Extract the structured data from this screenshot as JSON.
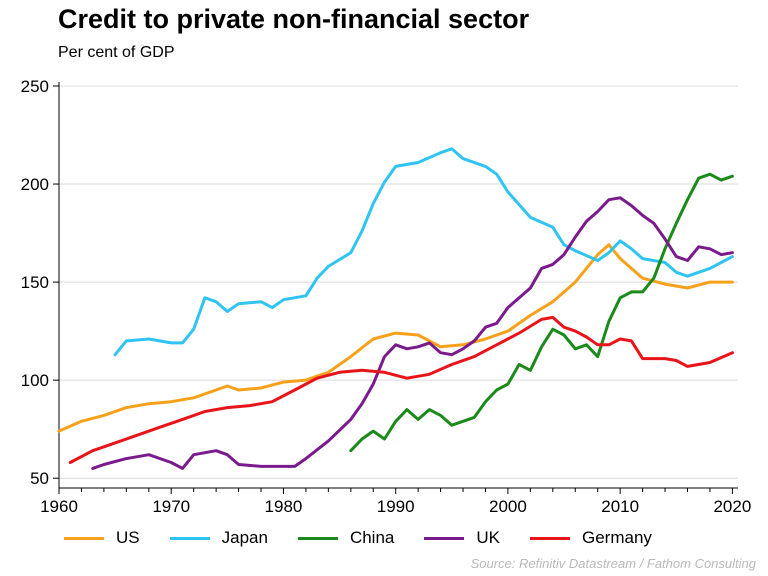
{
  "title": "Credit to private non-financial sector",
  "subtitle": "Per cent of GDP",
  "source": "Source: Refinitiv Datastream / Fathom Consulting",
  "chart_data": {
    "type": "line",
    "title": "Credit to private non-financial sector",
    "subtitle": "Per cent of GDP",
    "xlabel": "",
    "ylabel": "",
    "xlim": [
      1960,
      2020.5
    ],
    "ylim": [
      45,
      250
    ],
    "yticks": [
      50,
      100,
      150,
      200,
      250
    ],
    "xticks": [
      1960,
      1970,
      1980,
      1990,
      2000,
      2010,
      2020
    ],
    "grid": "horizontal",
    "legend": "bottom",
    "series": [
      {
        "name": "US",
        "color": "#f7a11a",
        "points": [
          [
            1960,
            74
          ],
          [
            1962,
            79
          ],
          [
            1964,
            82
          ],
          [
            1966,
            86
          ],
          [
            1968,
            88
          ],
          [
            1970,
            89
          ],
          [
            1972,
            91
          ],
          [
            1974,
            95
          ],
          [
            1975,
            97
          ],
          [
            1976,
            95
          ],
          [
            1978,
            96
          ],
          [
            1980,
            99
          ],
          [
            1982,
            100
          ],
          [
            1984,
            104
          ],
          [
            1986,
            112
          ],
          [
            1988,
            121
          ],
          [
            1990,
            124
          ],
          [
            1992,
            123
          ],
          [
            1994,
            117
          ],
          [
            1996,
            118
          ],
          [
            1998,
            121
          ],
          [
            2000,
            125
          ],
          [
            2002,
            133
          ],
          [
            2004,
            140
          ],
          [
            2006,
            150
          ],
          [
            2008,
            164
          ],
          [
            2009,
            169
          ],
          [
            2010,
            162
          ],
          [
            2012,
            152
          ],
          [
            2014,
            149
          ],
          [
            2016,
            147
          ],
          [
            2018,
            150
          ],
          [
            2020,
            150
          ]
        ]
      },
      {
        "name": "Japan",
        "color": "#2fc4f2",
        "points": [
          [
            1965,
            113
          ],
          [
            1966,
            120
          ],
          [
            1968,
            121
          ],
          [
            1970,
            119
          ],
          [
            1971,
            119
          ],
          [
            1972,
            126
          ],
          [
            1973,
            142
          ],
          [
            1974,
            140
          ],
          [
            1975,
            135
          ],
          [
            1976,
            139
          ],
          [
            1978,
            140
          ],
          [
            1979,
            137
          ],
          [
            1980,
            141
          ],
          [
            1982,
            143
          ],
          [
            1983,
            152
          ],
          [
            1984,
            158
          ],
          [
            1986,
            165
          ],
          [
            1987,
            176
          ],
          [
            1988,
            190
          ],
          [
            1989,
            201
          ],
          [
            1990,
            209
          ],
          [
            1992,
            211
          ],
          [
            1994,
            216
          ],
          [
            1995,
            218
          ],
          [
            1996,
            213
          ],
          [
            1998,
            209
          ],
          [
            1999,
            205
          ],
          [
            2000,
            196
          ],
          [
            2002,
            183
          ],
          [
            2004,
            178
          ],
          [
            2005,
            169
          ],
          [
            2006,
            166
          ],
          [
            2008,
            161
          ],
          [
            2009,
            165
          ],
          [
            2010,
            171
          ],
          [
            2011,
            167
          ],
          [
            2012,
            162
          ],
          [
            2014,
            160
          ],
          [
            2015,
            155
          ],
          [
            2016,
            153
          ],
          [
            2018,
            157
          ],
          [
            2019,
            160
          ],
          [
            2020,
            163
          ]
        ]
      },
      {
        "name": "China",
        "color": "#1a8a1a",
        "points": [
          [
            1986,
            64
          ],
          [
            1987,
            70
          ],
          [
            1988,
            74
          ],
          [
            1989,
            70
          ],
          [
            1990,
            79
          ],
          [
            1991,
            85
          ],
          [
            1992,
            80
          ],
          [
            1993,
            85
          ],
          [
            1994,
            82
          ],
          [
            1995,
            77
          ],
          [
            1996,
            79
          ],
          [
            1997,
            81
          ],
          [
            1998,
            89
          ],
          [
            1999,
            95
          ],
          [
            2000,
            98
          ],
          [
            2001,
            108
          ],
          [
            2002,
            105
          ],
          [
            2003,
            117
          ],
          [
            2004,
            126
          ],
          [
            2005,
            123
          ],
          [
            2006,
            116
          ],
          [
            2007,
            118
          ],
          [
            2008,
            112
          ],
          [
            2009,
            130
          ],
          [
            2010,
            142
          ],
          [
            2011,
            145
          ],
          [
            2012,
            145
          ],
          [
            2013,
            152
          ],
          [
            2014,
            167
          ],
          [
            2015,
            180
          ],
          [
            2016,
            192
          ],
          [
            2017,
            203
          ],
          [
            2018,
            205
          ],
          [
            2019,
            202
          ],
          [
            2020,
            204
          ]
        ]
      },
      {
        "name": "UK",
        "color": "#7b1a8c",
        "points": [
          [
            1963,
            55
          ],
          [
            1964,
            57
          ],
          [
            1966,
            60
          ],
          [
            1968,
            62
          ],
          [
            1970,
            58
          ],
          [
            1971,
            55
          ],
          [
            1972,
            62
          ],
          [
            1974,
            64
          ],
          [
            1975,
            62
          ],
          [
            1976,
            57
          ],
          [
            1978,
            56
          ],
          [
            1980,
            56
          ],
          [
            1981,
            56
          ],
          [
            1982,
            60
          ],
          [
            1984,
            69
          ],
          [
            1986,
            80
          ],
          [
            1987,
            88
          ],
          [
            1988,
            98
          ],
          [
            1989,
            112
          ],
          [
            1990,
            118
          ],
          [
            1991,
            116
          ],
          [
            1992,
            117
          ],
          [
            1993,
            119
          ],
          [
            1994,
            114
          ],
          [
            1995,
            113
          ],
          [
            1996,
            116
          ],
          [
            1997,
            120
          ],
          [
            1998,
            127
          ],
          [
            1999,
            129
          ],
          [
            2000,
            137
          ],
          [
            2002,
            147
          ],
          [
            2003,
            157
          ],
          [
            2004,
            159
          ],
          [
            2005,
            164
          ],
          [
            2006,
            173
          ],
          [
            2007,
            181
          ],
          [
            2008,
            186
          ],
          [
            2009,
            192
          ],
          [
            2010,
            193
          ],
          [
            2011,
            189
          ],
          [
            2012,
            184
          ],
          [
            2013,
            180
          ],
          [
            2014,
            172
          ],
          [
            2015,
            163
          ],
          [
            2016,
            161
          ],
          [
            2017,
            168
          ],
          [
            2018,
            167
          ],
          [
            2019,
            164
          ],
          [
            2020,
            165
          ]
        ]
      },
      {
        "name": "Germany",
        "color": "#e8141a",
        "points": [
          [
            1961,
            58
          ],
          [
            1963,
            64
          ],
          [
            1965,
            68
          ],
          [
            1967,
            72
          ],
          [
            1969,
            76
          ],
          [
            1971,
            80
          ],
          [
            1973,
            84
          ],
          [
            1975,
            86
          ],
          [
            1977,
            87
          ],
          [
            1979,
            89
          ],
          [
            1981,
            95
          ],
          [
            1983,
            101
          ],
          [
            1985,
            104
          ],
          [
            1987,
            105
          ],
          [
            1989,
            104
          ],
          [
            1991,
            101
          ],
          [
            1993,
            103
          ],
          [
            1995,
            108
          ],
          [
            1997,
            112
          ],
          [
            1999,
            118
          ],
          [
            2001,
            124
          ],
          [
            2003,
            131
          ],
          [
            2004,
            132
          ],
          [
            2005,
            127
          ],
          [
            2006,
            125
          ],
          [
            2007,
            122
          ],
          [
            2008,
            118
          ],
          [
            2009,
            118
          ],
          [
            2010,
            121
          ],
          [
            2011,
            120
          ],
          [
            2012,
            111
          ],
          [
            2014,
            111
          ],
          [
            2015,
            110
          ],
          [
            2016,
            107
          ],
          [
            2018,
            109
          ],
          [
            2020,
            114
          ]
        ]
      }
    ]
  }
}
